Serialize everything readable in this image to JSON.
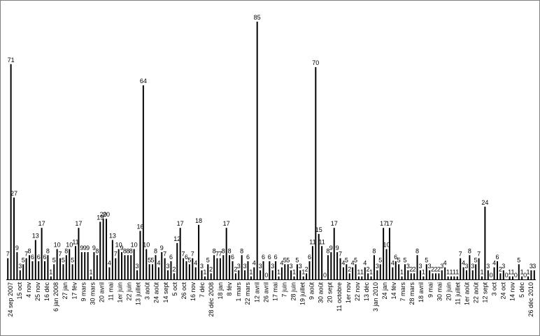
{
  "chart_data": {
    "type": "bar",
    "title": "",
    "xlabel": "",
    "ylabel": "",
    "ylim": [
      0,
      90
    ],
    "grid": false,
    "legend": "none",
    "bar_color": "#000000",
    "tick_labels": [
      "24 sep 2007",
      "15 oct",
      "4 nov",
      "25 nov",
      "16 déc",
      "6 jan 2008",
      "27 jan",
      "17 fév",
      "9 mars",
      "30 mars",
      "20 avril",
      "11 mai",
      "1er juin",
      "22 juin",
      "13 juillet",
      "3 août",
      "24 août",
      "14 sept",
      "5 oct",
      "26 oct",
      "16 nov",
      "7 déc",
      "28 déc 2008",
      "18 jan",
      "8 fév",
      "1 mars",
      "22 mars",
      "12 avril",
      "26 avril",
      "17 mai",
      "7 juin",
      "28 juin",
      "19 juillet",
      "9 août",
      "30 août",
      "20 sept",
      "11 octobre",
      "1er nov",
      "22 nov",
      "13 déc",
      "3 jan 2010",
      "24 jan",
      "14 fév",
      "7 mars",
      "28 mars",
      "18 avril",
      "9 mai",
      "30 mai",
      "20 juin",
      "11 juillet",
      "1er août",
      "22 août",
      "12 sept",
      "3 oct",
      "24 oct",
      "14 nov",
      "5 déc",
      "26 déc 2010"
    ],
    "values": [
      7,
      71,
      27,
      9,
      3,
      5,
      7,
      8,
      6,
      13,
      6,
      17,
      6,
      8,
      1,
      5,
      10,
      7,
      5,
      8,
      10,
      5,
      11,
      17,
      9,
      9,
      9,
      1,
      9,
      8,
      19,
      20,
      20,
      4,
      13,
      7,
      10,
      9,
      8,
      8,
      8,
      10,
      3,
      16,
      64,
      10,
      5,
      5,
      8,
      4,
      9,
      7,
      3,
      6,
      2,
      12,
      17,
      7,
      6,
      5,
      7,
      4,
      18,
      3,
      1,
      5,
      2,
      8,
      7,
      7,
      8,
      17,
      8,
      6,
      2,
      3,
      8,
      3,
      6,
      1,
      4,
      85,
      3,
      6,
      0,
      6,
      3,
      6,
      1,
      4,
      5,
      5,
      3,
      1,
      5,
      3,
      1,
      2,
      6,
      11,
      70,
      15,
      11,
      0,
      8,
      9,
      17,
      9,
      7,
      4,
      5,
      2,
      4,
      5,
      1,
      1,
      4,
      2,
      1,
      8,
      3,
      5,
      17,
      10,
      17,
      4,
      6,
      5,
      1,
      5,
      3,
      2,
      2,
      8,
      3,
      1,
      5,
      3,
      2,
      2,
      2,
      3,
      4,
      1,
      1,
      1,
      1,
      7,
      4,
      3,
      8,
      3,
      5,
      7,
      1,
      24,
      3,
      0,
      4,
      6,
      2,
      3,
      0,
      1,
      1,
      0,
      5,
      1,
      0,
      1,
      3,
      3
    ]
  }
}
